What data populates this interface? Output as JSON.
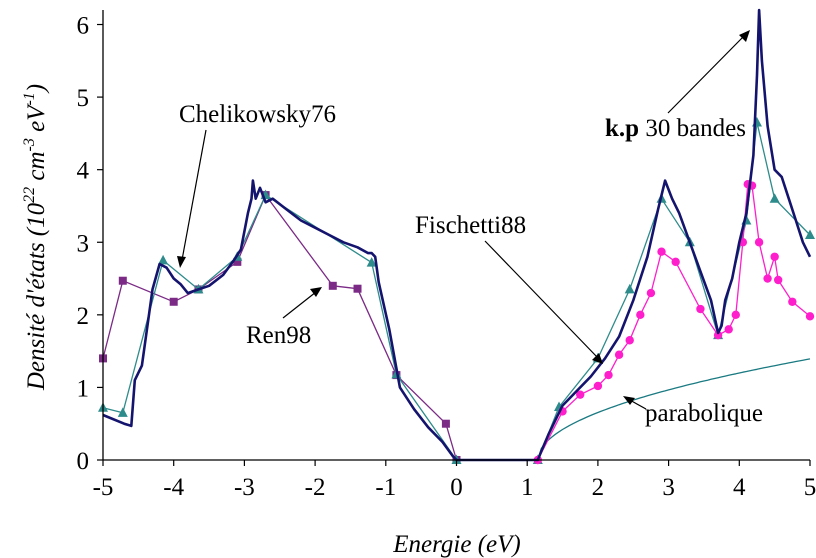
{
  "chart_data": {
    "type": "line",
    "xlabel": "Energie (eV)",
    "ylabel": {
      "prefix": "Densité d'états (10",
      "exp1": "22",
      "mid1": " cm",
      "exp2": "-3",
      "mid2": " eV",
      "exp3": "-1",
      "suffix": ")"
    },
    "xlim": [
      -5,
      5
    ],
    "ylim": [
      0,
      6.2
    ],
    "xticks": [
      "-5",
      "-4",
      "-3",
      "-2",
      "-1",
      "0",
      "1",
      "2",
      "3",
      "4",
      "5"
    ],
    "yticks": [
      "0",
      "1",
      "2",
      "3",
      "4",
      "5",
      "6"
    ],
    "grid": false,
    "legend": "none",
    "series": [
      {
        "name": "k.p 30 bandes",
        "color": "#14146e",
        "marker": "none",
        "points": [
          [
            -5.0,
            0.62
          ],
          [
            -4.7,
            0.5
          ],
          [
            -4.6,
            0.47
          ],
          [
            -4.55,
            1.1
          ],
          [
            -4.45,
            1.3
          ],
          [
            -4.3,
            2.35
          ],
          [
            -4.2,
            2.7
          ],
          [
            -4.1,
            2.65
          ],
          [
            -4.0,
            2.5
          ],
          [
            -3.9,
            2.42
          ],
          [
            -3.8,
            2.3
          ],
          [
            -3.65,
            2.35
          ],
          [
            -3.5,
            2.4
          ],
          [
            -3.3,
            2.55
          ],
          [
            -3.15,
            2.75
          ],
          [
            -3.05,
            2.9
          ],
          [
            -2.95,
            3.4
          ],
          [
            -2.9,
            3.6
          ],
          [
            -2.88,
            3.85
          ],
          [
            -2.84,
            3.6
          ],
          [
            -2.78,
            3.75
          ],
          [
            -2.7,
            3.55
          ],
          [
            -2.6,
            3.6
          ],
          [
            -2.4,
            3.45
          ],
          [
            -2.2,
            3.3
          ],
          [
            -2.0,
            3.2
          ],
          [
            -1.8,
            3.1
          ],
          [
            -1.6,
            3.0
          ],
          [
            -1.4,
            2.93
          ],
          [
            -1.25,
            2.85
          ],
          [
            -1.2,
            2.85
          ],
          [
            -1.15,
            2.8
          ],
          [
            -1.1,
            2.45
          ],
          [
            -0.95,
            1.8
          ],
          [
            -0.8,
            1.0
          ],
          [
            -0.6,
            0.7
          ],
          [
            -0.4,
            0.45
          ],
          [
            -0.2,
            0.25
          ],
          [
            -0.05,
            0.05
          ],
          [
            0.0,
            0.0
          ],
          [
            1.15,
            0.0
          ],
          [
            1.2,
            0.12
          ],
          [
            1.3,
            0.35
          ],
          [
            1.5,
            0.75
          ],
          [
            1.7,
            0.95
          ],
          [
            1.9,
            1.15
          ],
          [
            2.1,
            1.4
          ],
          [
            2.3,
            1.7
          ],
          [
            2.5,
            2.2
          ],
          [
            2.7,
            2.8
          ],
          [
            2.85,
            3.45
          ],
          [
            2.95,
            3.85
          ],
          [
            3.05,
            3.6
          ],
          [
            3.15,
            3.4
          ],
          [
            3.3,
            3.0
          ],
          [
            3.45,
            2.6
          ],
          [
            3.6,
            2.2
          ],
          [
            3.7,
            1.75
          ],
          [
            3.75,
            1.85
          ],
          [
            3.8,
            2.2
          ],
          [
            3.9,
            2.5
          ],
          [
            4.0,
            3.0
          ],
          [
            4.1,
            3.4
          ],
          [
            4.2,
            4.2
          ],
          [
            4.25,
            5.3
          ],
          [
            4.28,
            6.2
          ],
          [
            4.32,
            5.5
          ],
          [
            4.4,
            4.6
          ],
          [
            4.5,
            4.0
          ],
          [
            4.6,
            3.9
          ],
          [
            4.7,
            3.6
          ],
          [
            4.8,
            3.3
          ],
          [
            4.9,
            3.0
          ],
          [
            5.0,
            2.8
          ]
        ]
      },
      {
        "name": "Chelikowsky76",
        "color": "#2e8b8b",
        "marker": "triangle",
        "points": [
          [
            -5.0,
            0.72
          ],
          [
            -4.72,
            0.65
          ],
          [
            -4.15,
            2.75
          ],
          [
            -3.65,
            2.35
          ],
          [
            -3.1,
            2.8
          ],
          [
            -2.7,
            3.65
          ],
          [
            -1.2,
            2.72
          ],
          [
            -0.85,
            1.18
          ],
          [
            0.0,
            0.0
          ],
          [
            1.15,
            0.0
          ],
          [
            1.45,
            0.73
          ],
          [
            2.0,
            1.4
          ],
          [
            2.45,
            2.35
          ],
          [
            2.9,
            3.6
          ],
          [
            3.3,
            3.0
          ],
          [
            3.7,
            1.72
          ],
          [
            4.1,
            3.3
          ],
          [
            4.25,
            4.65
          ],
          [
            4.5,
            3.6
          ],
          [
            5.0,
            3.1
          ]
        ]
      },
      {
        "name": "Ren98",
        "color": "#7b2a86",
        "marker": "square",
        "points": [
          [
            -5.0,
            1.4
          ],
          [
            -4.72,
            2.47
          ],
          [
            -4.0,
            2.18
          ],
          [
            -3.65,
            2.35
          ],
          [
            -3.1,
            2.73
          ],
          [
            -2.7,
            3.65
          ],
          [
            -1.75,
            2.4
          ],
          [
            -1.4,
            2.36
          ],
          [
            -0.85,
            1.17
          ],
          [
            -0.15,
            0.5
          ],
          [
            0.0,
            0.0
          ]
        ]
      },
      {
        "name": "Fischetti88",
        "color": "#ff1ecc",
        "marker": "circle",
        "points": [
          [
            1.15,
            0.0
          ],
          [
            1.5,
            0.67
          ],
          [
            1.75,
            0.9
          ],
          [
            2.0,
            1.02
          ],
          [
            2.15,
            1.17
          ],
          [
            2.3,
            1.45
          ],
          [
            2.45,
            1.65
          ],
          [
            2.6,
            2.0
          ],
          [
            2.75,
            2.3
          ],
          [
            2.9,
            2.87
          ],
          [
            3.1,
            2.73
          ],
          [
            3.45,
            2.08
          ],
          [
            3.7,
            1.72
          ],
          [
            3.85,
            1.8
          ],
          [
            3.95,
            2.0
          ],
          [
            4.05,
            3.0
          ],
          [
            4.12,
            3.8
          ],
          [
            4.18,
            3.78
          ],
          [
            4.28,
            3.0
          ],
          [
            4.4,
            2.5
          ],
          [
            4.5,
            2.8
          ],
          [
            4.55,
            2.48
          ],
          [
            4.75,
            2.18
          ],
          [
            5.0,
            1.98
          ]
        ]
      },
      {
        "name": "parabolique",
        "color": "#1a7a82",
        "marker": "none",
        "function": "sqrt",
        "x0": 1.15,
        "coef": 0.71,
        "xmax": 5.0
      }
    ],
    "annotations": [
      {
        "text": "Chelikowsky76",
        "bold_prefix": ""
      },
      {
        "text": "Ren98",
        "bold_prefix": ""
      },
      {
        "text": "Fischetti88",
        "bold_prefix": ""
      },
      {
        "text": " 30 bandes",
        "bold_prefix": "k.p"
      },
      {
        "text": "parabolique",
        "bold_prefix": ""
      }
    ]
  }
}
